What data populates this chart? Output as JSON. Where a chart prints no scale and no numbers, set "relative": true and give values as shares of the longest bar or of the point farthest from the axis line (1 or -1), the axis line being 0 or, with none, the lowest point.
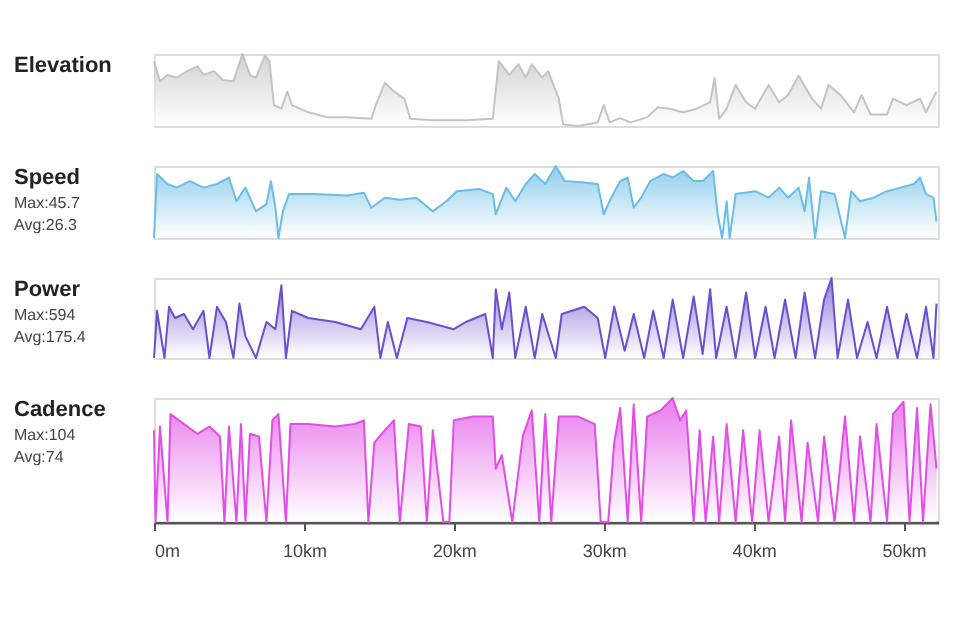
{
  "chart_data": [
    {
      "type": "area",
      "title": "Elevation",
      "relative": true,
      "color": "#c4c4c4",
      "xlim": [
        0,
        52.3
      ],
      "tick_labels": false,
      "grid": false,
      "x": [
        0,
        0.4,
        0.9,
        1.5,
        2.2,
        2.9,
        3.3,
        4.0,
        4.6,
        5.3,
        5.9,
        6.4,
        6.8,
        7.4,
        7.7,
        8.0,
        8.5,
        8.9,
        9.2,
        10.3,
        11.6,
        12.9,
        14.5,
        14.8,
        15.4,
        16.0,
        16.7,
        17.1,
        18.6,
        20.8,
        22.6,
        23.0,
        23.7,
        24.3,
        24.8,
        25.2,
        25.9,
        26.3,
        27.0,
        27.3,
        28.3,
        29.6,
        30.0,
        30.4,
        31.1,
        31.8,
        32.9,
        33.6,
        34.4,
        35.3,
        36.2,
        37.1,
        37.4,
        37.7,
        38.2,
        38.8,
        39.5,
        40.1,
        41.0,
        41.7,
        42.3,
        43.0,
        43.9,
        44.5,
        45.0,
        45.8,
        46.7,
        47.2,
        47.8,
        48.9,
        49.3,
        50.2,
        51.1,
        51.5,
        52.2
      ],
      "values": [
        0.9,
        0.62,
        0.71,
        0.67,
        0.76,
        0.83,
        0.71,
        0.76,
        0.64,
        0.62,
        1.0,
        0.71,
        0.67,
        0.98,
        0.9,
        0.29,
        0.24,
        0.48,
        0.29,
        0.19,
        0.12,
        0.12,
        0.1,
        0.29,
        0.6,
        0.48,
        0.38,
        0.1,
        0.08,
        0.08,
        0.1,
        0.9,
        0.71,
        0.86,
        0.67,
        0.86,
        0.67,
        0.76,
        0.38,
        0.02,
        0,
        0.05,
        0.29,
        0.05,
        0.11,
        0.05,
        0.12,
        0.26,
        0.24,
        0.19,
        0.24,
        0.33,
        0.67,
        0.1,
        0.24,
        0.57,
        0.33,
        0.24,
        0.57,
        0.33,
        0.43,
        0.7,
        0.38,
        0.24,
        0.57,
        0.43,
        0.19,
        0.43,
        0.16,
        0.16,
        0.38,
        0.29,
        0.38,
        0.19,
        0.48
      ]
    },
    {
      "type": "area",
      "title": "Speed",
      "annotations": [
        "Max:45.7",
        "Avg:26.3"
      ],
      "relative": true,
      "color": "#6bbde8",
      "xlim": [
        0,
        52.3
      ],
      "tick_labels": false,
      "grid": false,
      "x": [
        0,
        0.2,
        0.9,
        1.5,
        2.4,
        3.3,
        4.2,
        5.0,
        5.5,
        6.1,
        6.8,
        7.5,
        7.8,
        8.1,
        8.3,
        8.6,
        9.0,
        10.7,
        12.9,
        14.0,
        14.5,
        15.4,
        16.4,
        17.5,
        18.6,
        19.5,
        20.2,
        21.7,
        22.6,
        22.8,
        23.5,
        24.1,
        24.8,
        25.4,
        26.1,
        26.8,
        27.4,
        28.7,
        29.6,
        30.0,
        30.5,
        31.1,
        31.6,
        32.0,
        32.5,
        33.1,
        34.0,
        34.6,
        35.3,
        36.0,
        36.6,
        37.3,
        37.6,
        37.9,
        38.2,
        38.4,
        38.8,
        40.1,
        41.0,
        41.7,
        42.3,
        43.0,
        43.4,
        43.7,
        44.1,
        44.5,
        45.4,
        46.1,
        46.5,
        47.1,
        48.0,
        48.9,
        49.8,
        50.7,
        51.1,
        51.5,
        52.0,
        52.2
      ],
      "values": [
        0,
        0.89,
        0.75,
        0.7,
        0.79,
        0.7,
        0.75,
        0.84,
        0.51,
        0.7,
        0.37,
        0.47,
        0.79,
        0.42,
        0,
        0.37,
        0.61,
        0.61,
        0.59,
        0.63,
        0.42,
        0.56,
        0.53,
        0.56,
        0.37,
        0.51,
        0.65,
        0.68,
        0.61,
        0.33,
        0.7,
        0.51,
        0.75,
        0.89,
        0.75,
        1.0,
        0.79,
        0.77,
        0.75,
        0.33,
        0.56,
        0.79,
        0.84,
        0.42,
        0.56,
        0.79,
        0.89,
        0.84,
        0.93,
        0.79,
        0.79,
        0.93,
        0.33,
        0,
        0.51,
        0,
        0.61,
        0.65,
        0.56,
        0.7,
        0.56,
        0.7,
        0.37,
        0.84,
        0,
        0.65,
        0.61,
        0,
        0.65,
        0.51,
        0.56,
        0.65,
        0.7,
        0.75,
        0.84,
        0.61,
        0.56,
        0.23
      ]
    },
    {
      "type": "area",
      "title": "Power",
      "annotations": [
        "Max:594",
        "Avg:175.4"
      ],
      "relative": true,
      "color": "#6a4fcf",
      "xlim": [
        0,
        52.3
      ],
      "tick_labels": false,
      "grid": false,
      "x": [
        0,
        0.2,
        0.7,
        1.0,
        1.4,
        2.0,
        2.6,
        3.3,
        3.7,
        4.2,
        4.8,
        5.3,
        5.7,
        6.1,
        6.8,
        7.5,
        8.1,
        8.5,
        8.8,
        9.2,
        10.3,
        12.1,
        13.8,
        14.7,
        15.1,
        15.6,
        16.2,
        16.9,
        18.2,
        20.0,
        20.8,
        22.1,
        22.6,
        22.8,
        23.2,
        23.7,
        24.1,
        24.8,
        25.4,
        25.9,
        26.8,
        27.2,
        28.7,
        29.6,
        30.1,
        30.7,
        31.4,
        32.0,
        32.7,
        33.3,
        34.0,
        34.6,
        35.3,
        36.0,
        36.6,
        37.1,
        37.5,
        38.2,
        38.8,
        39.5,
        40.1,
        40.8,
        41.4,
        42.1,
        42.8,
        43.4,
        44.1,
        44.7,
        45.2,
        45.6,
        46.3,
        46.9,
        47.6,
        48.2,
        48.9,
        49.6,
        50.2,
        50.9,
        51.5,
        52.0,
        52.2
      ],
      "values": [
        0,
        0.59,
        0,
        0.64,
        0.5,
        0.55,
        0.36,
        0.59,
        0,
        0.64,
        0.45,
        0,
        0.68,
        0.27,
        0,
        0.45,
        0.36,
        0.91,
        0,
        0.59,
        0.5,
        0.45,
        0.36,
        0.64,
        0,
        0.45,
        0,
        0.5,
        0.45,
        0.36,
        0.45,
        0.55,
        0,
        0.86,
        0.36,
        0.82,
        0,
        0.64,
        0,
        0.55,
        0,
        0.55,
        0.64,
        0.5,
        0,
        0.64,
        0.09,
        0.55,
        0,
        0.59,
        0,
        0.73,
        0,
        0.77,
        0.05,
        0.86,
        0,
        0.64,
        0,
        0.82,
        0,
        0.64,
        0,
        0.73,
        0,
        0.82,
        0,
        0.73,
        1.0,
        0,
        0.73,
        0,
        0.45,
        0,
        0.64,
        0,
        0.55,
        0,
        0.64,
        0,
        0.68
      ]
    },
    {
      "type": "area",
      "title": "Cadence",
      "annotations": [
        "Max:104",
        "Avg:74"
      ],
      "relative": true,
      "color": "#e04ee6",
      "xlim": [
        0,
        52.3
      ],
      "tick_labels": "x",
      "grid": false,
      "xticks": [
        {
          "value": 0,
          "label": "0m"
        },
        {
          "value": 10,
          "label": "10km"
        },
        {
          "value": 20,
          "label": "20km"
        },
        {
          "value": 30,
          "label": "30km"
        },
        {
          "value": 40,
          "label": "40km"
        },
        {
          "value": 50,
          "label": "50km"
        }
      ],
      "x": [
        0,
        0.1,
        0.4,
        0.9,
        1.1,
        2.0,
        2.9,
        3.7,
        4.4,
        4.7,
        5.0,
        5.5,
        5.8,
        6.1,
        6.4,
        7.0,
        7.5,
        7.9,
        8.3,
        8.8,
        9.1,
        10.3,
        12.1,
        13.4,
        14.0,
        14.3,
        14.7,
        15.4,
        16.0,
        16.4,
        17.0,
        17.8,
        18.2,
        18.6,
        19.3,
        19.7,
        20.0,
        21.3,
        22.6,
        22.8,
        23.2,
        23.9,
        24.6,
        25.2,
        25.7,
        26.1,
        26.5,
        27.0,
        28.3,
        29.4,
        29.8,
        30.3,
        30.7,
        31.1,
        31.6,
        32.0,
        32.5,
        32.9,
        33.8,
        34.6,
        35.1,
        35.5,
        36.0,
        36.4,
        36.8,
        37.3,
        37.7,
        38.2,
        38.8,
        39.3,
        39.9,
        40.4,
        41.0,
        41.7,
        42.1,
        42.5,
        43.2,
        43.6,
        44.3,
        44.7,
        45.4,
        46.1,
        46.7,
        47.1,
        47.8,
        48.2,
        48.9,
        49.3,
        50.0,
        50.4,
        50.9,
        51.3,
        51.8,
        52.2
      ],
      "values": [
        0.74,
        0,
        0.77,
        0,
        0.87,
        0.79,
        0.71,
        0.77,
        0.69,
        0,
        0.77,
        0,
        0.79,
        0,
        0.71,
        0.69,
        0,
        0.82,
        0.87,
        0,
        0.79,
        0.79,
        0.77,
        0.79,
        0.82,
        0,
        0.64,
        0.74,
        0.82,
        0,
        0.79,
        0.77,
        0,
        0.74,
        0,
        0,
        0.82,
        0.85,
        0.85,
        0.43,
        0.54,
        0,
        0.69,
        0.9,
        0,
        0.87,
        0,
        0.85,
        0.85,
        0.79,
        0,
        0,
        0.64,
        0.92,
        0,
        0.95,
        0,
        0.85,
        0.9,
        1.0,
        0.82,
        0.9,
        0,
        0.74,
        0,
        0.69,
        0,
        0.79,
        0,
        0.74,
        0,
        0.74,
        0,
        0.69,
        0,
        0.82,
        0,
        0.64,
        0,
        0.69,
        0,
        0.85,
        0,
        0.69,
        0,
        0.79,
        0,
        0.87,
        0.97,
        0,
        0.92,
        0,
        0.95,
        0.43
      ]
    }
  ]
}
